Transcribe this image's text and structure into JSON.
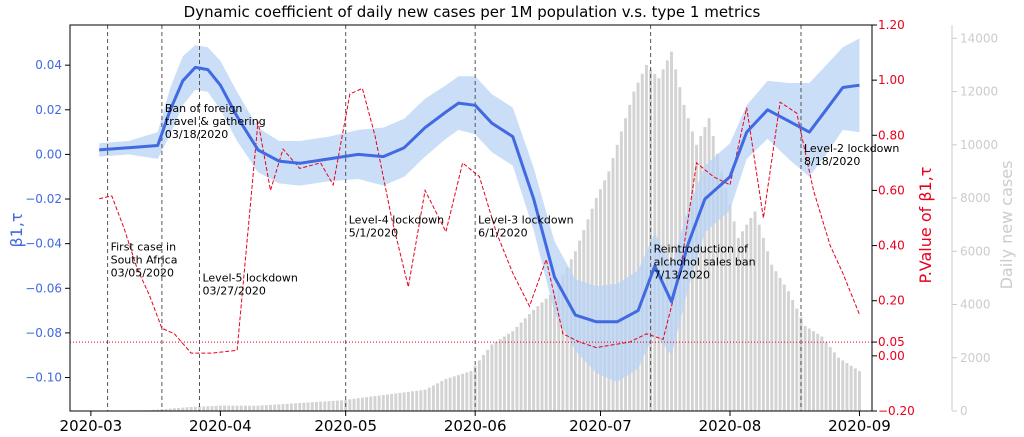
{
  "chart_data": {
    "type": "line",
    "title": "Dynamic coefficient of daily new cases per 1M population v.s. type 1 metrics",
    "ylabel_left": "β1,τ",
    "ylabel_right": "P.Value of β1,τ",
    "ylabel_right2": "Daily new cases",
    "xlim": [
      "2020-02-25",
      "2020-09-04"
    ],
    "ylim_left": [
      -0.115,
      0.058
    ],
    "ylim_right": [
      -0.2,
      1.2
    ],
    "ylim_right2": [
      0,
      14500
    ],
    "x_ticks": [
      "2020-03",
      "2020-04",
      "2020-05",
      "2020-06",
      "2020-07",
      "2020-08",
      "2020-09"
    ],
    "y_ticks_left": [
      "0.04",
      "0.02",
      "0.00",
      "−0.02",
      "−0.04",
      "−0.06",
      "−0.08",
      "−0.10"
    ],
    "y_ticks_right": [
      "1.20",
      "1.00",
      "0.80",
      "0.60",
      "0.40",
      "0.20",
      "0.05",
      "0.00",
      "−0.20"
    ],
    "y_ticks_right2": [
      "14000",
      "12000",
      "10000",
      "8000",
      "6000",
      "4000",
      "2000",
      "0"
    ],
    "p_threshold": 0.05,
    "colors": {
      "beta": "#4169e1",
      "band": "#b9d3f5",
      "pvalue": "#e8001c",
      "cases": "#d3d3d3",
      "event_line": "#555555"
    },
    "events": [
      {
        "date": "2020-03-05",
        "lines": [
          "First case in",
          "South Africa",
          "03/05/2020"
        ],
        "text_y": -0.043
      },
      {
        "date": "2020-03-18",
        "lines": [
          "Ban of foreign",
          "travel & gathering",
          "03/18/2020"
        ],
        "text_y": 0.019
      },
      {
        "date": "2020-03-27",
        "lines": [
          "Level-5 lockdown",
          "03/27/2020"
        ],
        "text_y": -0.057
      },
      {
        "date": "2020-05-01",
        "lines": [
          "Level-4 lockdown",
          "5/1/2020"
        ],
        "text_y": -0.031
      },
      {
        "date": "2020-06-01",
        "lines": [
          "Level-3 lockdown",
          "6/1/2020"
        ],
        "text_y": -0.031
      },
      {
        "date": "2020-07-13",
        "lines": [
          "Reintroduction of",
          "alchohol sales ban",
          "7/13/2020"
        ],
        "text_y": -0.044
      },
      {
        "date": "2020-08-18",
        "lines": [
          "Level-2 lockdown",
          "8/18/2020"
        ],
        "text_y": 0.001
      }
    ],
    "beta": {
      "dates": [
        "2020-03-03",
        "2020-03-10",
        "2020-03-17",
        "2020-03-20",
        "2020-03-23",
        "2020-03-26",
        "2020-03-29",
        "2020-04-01",
        "2020-04-05",
        "2020-04-10",
        "2020-04-15",
        "2020-04-20",
        "2020-04-27",
        "2020-05-04",
        "2020-05-10",
        "2020-05-15",
        "2020-05-20",
        "2020-05-25",
        "2020-05-28",
        "2020-06-01",
        "2020-06-05",
        "2020-06-10",
        "2020-06-15",
        "2020-06-20",
        "2020-06-25",
        "2020-06-30",
        "2020-07-05",
        "2020-07-10",
        "2020-07-14",
        "2020-07-18",
        "2020-07-22",
        "2020-07-26",
        "2020-08-01",
        "2020-08-05",
        "2020-08-10",
        "2020-08-15",
        "2020-08-20",
        "2020-08-24",
        "2020-08-28",
        "2020-09-01"
      ],
      "values": [
        0.002,
        0.003,
        0.004,
        0.02,
        0.033,
        0.039,
        0.038,
        0.031,
        0.017,
        0.002,
        -0.003,
        -0.004,
        -0.002,
        0.0,
        -0.001,
        0.003,
        0.012,
        0.019,
        0.023,
        0.022,
        0.014,
        0.008,
        -0.02,
        -0.055,
        -0.072,
        -0.075,
        -0.075,
        -0.07,
        -0.05,
        -0.066,
        -0.04,
        -0.02,
        -0.01,
        0.01,
        0.02,
        0.015,
        0.01,
        0.02,
        0.03,
        0.031
      ]
    },
    "beta_upper": [
      0.005,
      0.006,
      0.01,
      0.03,
      0.044,
      0.049,
      0.048,
      0.042,
      0.028,
      0.012,
      0.006,
      0.006,
      0.008,
      0.011,
      0.012,
      0.016,
      0.025,
      0.031,
      0.035,
      0.035,
      0.027,
      0.021,
      -0.006,
      -0.039,
      -0.056,
      -0.059,
      -0.058,
      -0.052,
      -0.035,
      -0.05,
      -0.024,
      -0.005,
      0.005,
      0.022,
      0.033,
      0.032,
      0.032,
      0.04,
      0.048,
      0.052
    ],
    "beta_lower": [
      -0.001,
      0.0,
      -0.002,
      0.009,
      0.022,
      0.029,
      0.028,
      0.02,
      0.006,
      -0.008,
      -0.013,
      -0.014,
      -0.012,
      -0.011,
      -0.014,
      -0.01,
      -0.001,
      0.007,
      0.011,
      0.009,
      0.001,
      -0.005,
      -0.034,
      -0.071,
      -0.088,
      -0.098,
      -0.102,
      -0.096,
      -0.08,
      -0.09,
      -0.06,
      -0.035,
      -0.025,
      -0.002,
      0.007,
      -0.002,
      -0.01,
      0.0,
      0.011,
      0.01
    ],
    "pvalue": {
      "dates": [
        "2020-03-03",
        "2020-03-06",
        "2020-03-09",
        "2020-03-12",
        "2020-03-15",
        "2020-03-18",
        "2020-03-21",
        "2020-03-25",
        "2020-03-30",
        "2020-04-05",
        "2020-04-10",
        "2020-04-13",
        "2020-04-16",
        "2020-04-20",
        "2020-04-25",
        "2020-04-28",
        "2020-05-02",
        "2020-05-05",
        "2020-05-08",
        "2020-05-12",
        "2020-05-16",
        "2020-05-20",
        "2020-05-25",
        "2020-05-29",
        "2020-06-02",
        "2020-06-06",
        "2020-06-10",
        "2020-06-14",
        "2020-06-18",
        "2020-06-22",
        "2020-06-26",
        "2020-06-30",
        "2020-07-04",
        "2020-07-08",
        "2020-07-12",
        "2020-07-16",
        "2020-07-20",
        "2020-07-24",
        "2020-07-28",
        "2020-08-01",
        "2020-08-05",
        "2020-08-09",
        "2020-08-13",
        "2020-08-17",
        "2020-08-21",
        "2020-08-25",
        "2020-08-28",
        "2020-09-01"
      ],
      "values": [
        0.57,
        0.58,
        0.46,
        0.32,
        0.22,
        0.1,
        0.08,
        0.01,
        0.01,
        0.02,
        0.85,
        0.6,
        0.75,
        0.68,
        0.7,
        0.62,
        0.95,
        0.97,
        0.8,
        0.5,
        0.25,
        0.6,
        0.45,
        0.7,
        0.65,
        0.45,
        0.3,
        0.18,
        0.35,
        0.08,
        0.05,
        0.03,
        0.04,
        0.05,
        0.08,
        0.06,
        0.3,
        0.7,
        0.65,
        0.62,
        0.9,
        0.5,
        0.92,
        0.88,
        0.6,
        0.4,
        0.3,
        0.15
      ]
    },
    "cases": {
      "dates": [
        "2020-03-05",
        "2020-03-15",
        "2020-03-25",
        "2020-04-01",
        "2020-04-10",
        "2020-04-20",
        "2020-04-30",
        "2020-05-10",
        "2020-05-20",
        "2020-05-25",
        "2020-05-31",
        "2020-06-05",
        "2020-06-10",
        "2020-06-15",
        "2020-06-20",
        "2020-06-25",
        "2020-06-30",
        "2020-07-03",
        "2020-07-06",
        "2020-07-09",
        "2020-07-12",
        "2020-07-15",
        "2020-07-18",
        "2020-07-21",
        "2020-07-24",
        "2020-07-27",
        "2020-07-30",
        "2020-08-03",
        "2020-08-07",
        "2020-08-11",
        "2020-08-15",
        "2020-08-19",
        "2020-08-23",
        "2020-08-27",
        "2020-09-01"
      ],
      "values": [
        5,
        30,
        150,
        200,
        200,
        300,
        400,
        600,
        800,
        1200,
        1500,
        2500,
        3000,
        3800,
        4500,
        6000,
        8000,
        9000,
        10500,
        12000,
        13000,
        12500,
        13500,
        11500,
        10000,
        11000,
        9000,
        6500,
        7500,
        5500,
        4500,
        3200,
        2800,
        2000,
        1500
      ]
    }
  }
}
